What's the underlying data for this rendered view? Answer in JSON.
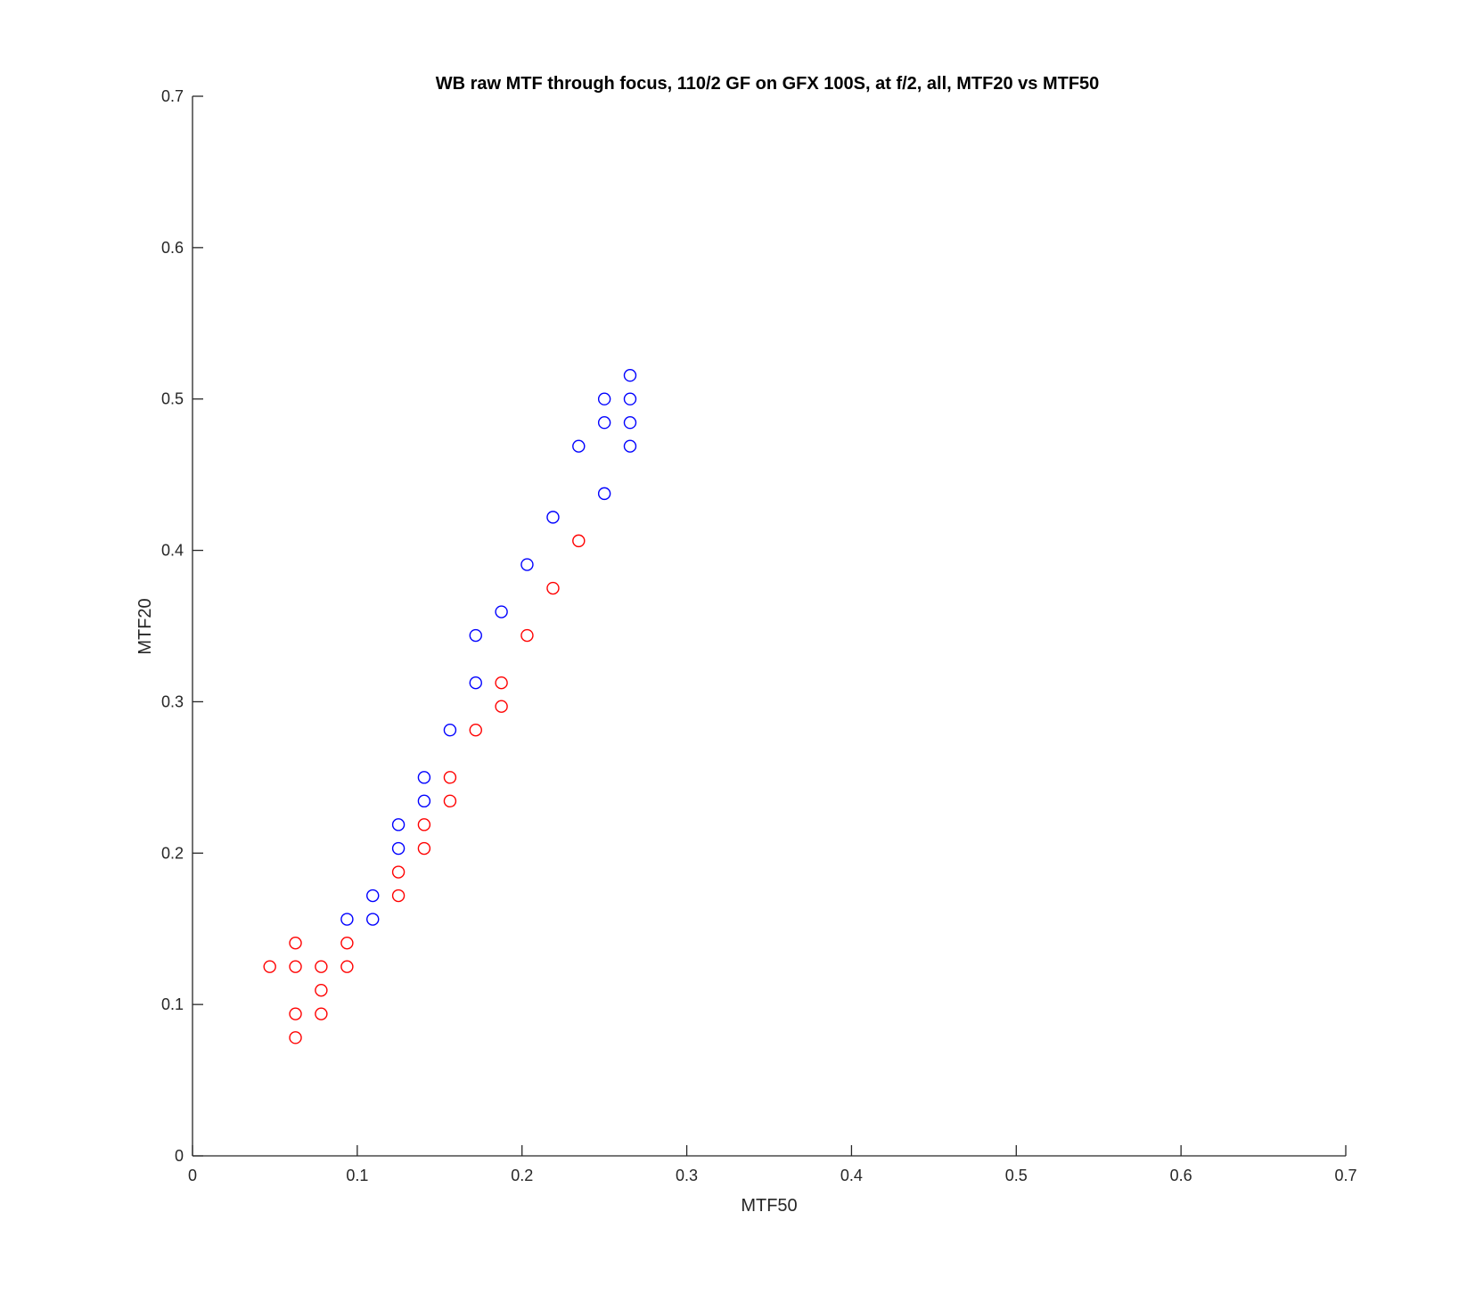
{
  "chart_data": {
    "type": "scatter",
    "title": "WB raw MTF through focus, 110/2 GF on GFX 100S, at f/2, all, MTF20 vs MTF50",
    "xlabel": "MTF50",
    "ylabel": "MTF20",
    "xlim": [
      0,
      0.7
    ],
    "ylim": [
      0,
      0.7
    ],
    "xticks": [
      "0",
      "0.1",
      "0.2",
      "0.3",
      "0.4",
      "0.5",
      "0.6",
      "0.7"
    ],
    "yticks": [
      "0",
      "0.1",
      "0.2",
      "0.3",
      "0.4",
      "0.5",
      "0.6",
      "0.7"
    ],
    "grid": false,
    "legend": "none",
    "marker": "open circle",
    "series": [
      {
        "color": "#0000ff",
        "points": [
          [
            0.0938,
            0.1563
          ],
          [
            0.1094,
            0.1563
          ],
          [
            0.1094,
            0.1719
          ],
          [
            0.125,
            0.2031
          ],
          [
            0.125,
            0.2188
          ],
          [
            0.1406,
            0.2344
          ],
          [
            0.1406,
            0.25
          ],
          [
            0.1563,
            0.2813
          ],
          [
            0.1719,
            0.3125
          ],
          [
            0.1719,
            0.3438
          ],
          [
            0.1875,
            0.3594
          ],
          [
            0.2031,
            0.3906
          ],
          [
            0.2188,
            0.4219
          ],
          [
            0.2344,
            0.4688
          ],
          [
            0.25,
            0.4375
          ],
          [
            0.25,
            0.4844
          ],
          [
            0.25,
            0.5
          ],
          [
            0.2656,
            0.4688
          ],
          [
            0.2656,
            0.4844
          ],
          [
            0.2656,
            0.5
          ],
          [
            0.2656,
            0.5156
          ]
        ]
      },
      {
        "color": "#ff0000",
        "points": [
          [
            0.0469,
            0.125
          ],
          [
            0.0625,
            0.0781
          ],
          [
            0.0625,
            0.0938
          ],
          [
            0.0625,
            0.125
          ],
          [
            0.0625,
            0.1406
          ],
          [
            0.0781,
            0.0938
          ],
          [
            0.0781,
            0.1094
          ],
          [
            0.0781,
            0.125
          ],
          [
            0.0938,
            0.125
          ],
          [
            0.0938,
            0.1406
          ],
          [
            0.125,
            0.1719
          ],
          [
            0.125,
            0.1875
          ],
          [
            0.1406,
            0.2031
          ],
          [
            0.1406,
            0.2188
          ],
          [
            0.1563,
            0.2344
          ],
          [
            0.1563,
            0.25
          ],
          [
            0.1719,
            0.2813
          ],
          [
            0.1875,
            0.2969
          ],
          [
            0.1875,
            0.3125
          ],
          [
            0.2031,
            0.3438
          ],
          [
            0.2188,
            0.375
          ],
          [
            0.2344,
            0.4063
          ]
        ]
      }
    ]
  }
}
